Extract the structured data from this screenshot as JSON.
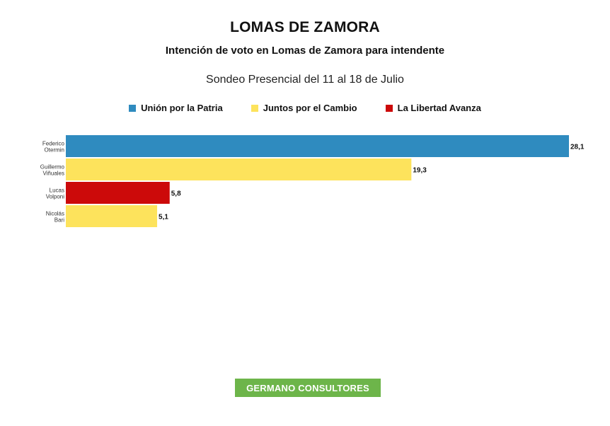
{
  "header": {
    "title": "LOMAS DE ZAMORA",
    "subtitle": "Intención de voto en Lomas de Zamora para intendente",
    "survey": "Sondeo Presencial del 11 al 18 de Julio"
  },
  "legend": [
    {
      "label": "Unión por la Patria",
      "color": "#2f8bbf"
    },
    {
      "label": "Juntos por el Cambio",
      "color": "#fde35c"
    },
    {
      "label": "La Libertad Avanza",
      "color": "#cc0a0a"
    }
  ],
  "chart_data": {
    "type": "bar",
    "orientation": "horizontal",
    "title": "LOMAS DE ZAMORA",
    "subtitle": "Intención de voto en Lomas de Zamora para intendente",
    "categories": [
      [
        "Federico",
        "Otermin"
      ],
      [
        "Guillermo",
        "Viñuales"
      ],
      [
        "Lucas",
        "Volponi"
      ],
      [
        "Nicolás",
        "Bari"
      ]
    ],
    "values": [
      28.1,
      19.3,
      5.8,
      5.1
    ],
    "value_labels": [
      "28,1",
      "19,3",
      "5,8",
      "5,1"
    ],
    "colors": [
      "#2f8bbf",
      "#fde35c",
      "#cc0a0a",
      "#fde35c"
    ],
    "parties": [
      "Unión por la Patria",
      "Juntos por el Cambio",
      "La Libertad Avanza",
      "Juntos por el Cambio"
    ],
    "xlim": [
      0,
      28.1
    ],
    "grid": false,
    "legend_position": "top"
  },
  "footer": {
    "label": "GERMANO CONSULTORES",
    "color": "#6db54a"
  }
}
